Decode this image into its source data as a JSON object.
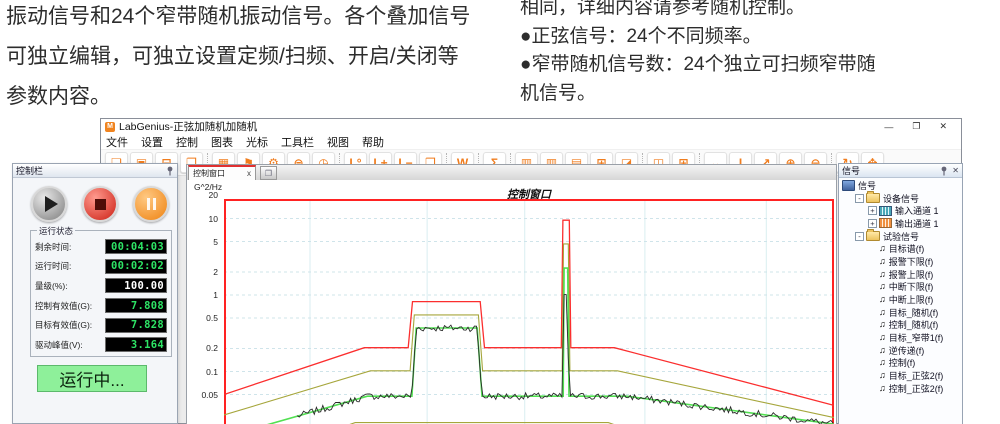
{
  "page": {
    "intro_left": [
      "振动信号和24个窄带随机振动信号。各个叠加信号",
      "可独立编辑，可独立设置定频/扫频、开启/关闭等",
      "参数内容。"
    ],
    "intro_right": [
      "相同，详细内容请参考随机控制。",
      "●正弦信号：24个不同频率。",
      "●窄带随机信号数：24个独立可扫频窄带随",
      "机信号。"
    ]
  },
  "window": {
    "title": "LabGenius-正弦加随机加随机",
    "logo_text": "M",
    "controls": [
      {
        "name": "minimize-button",
        "glyph": "—"
      },
      {
        "name": "restore-button",
        "glyph": "❐"
      },
      {
        "name": "close-button",
        "glyph": "✕"
      }
    ],
    "menu": [
      "文件",
      "设置",
      "控制",
      "图表",
      "光标",
      "工具栏",
      "视图",
      "帮助"
    ],
    "toolbar_groups": [
      {
        "icons": [
          {
            "name": "new-file-icon",
            "glyph": "❏"
          },
          {
            "name": "save-icon",
            "glyph": "▣"
          },
          {
            "name": "open-icon",
            "glyph": "⊟"
          },
          {
            "name": "export-icon",
            "glyph": "❐"
          }
        ]
      },
      {
        "icons": [
          {
            "name": "test-package-icon",
            "glyph": "▦"
          },
          {
            "name": "flag-icon",
            "glyph": "⚑"
          },
          {
            "name": "settings-gear-icon",
            "glyph": "⚙"
          },
          {
            "name": "channels-icon",
            "glyph": "⊜"
          },
          {
            "name": "schedule-clock-icon",
            "glyph": "◷"
          }
        ]
      },
      {
        "icons": [
          {
            "name": "level-reset-icon",
            "glyph": "L°"
          },
          {
            "name": "level-up-icon",
            "glyph": "L+"
          },
          {
            "name": "level-down-icon",
            "glyph": "L−"
          },
          {
            "name": "window-copy-icon",
            "glyph": "❒"
          }
        ]
      },
      {
        "icons": [
          {
            "name": "word-report-icon",
            "glyph": "W"
          }
        ]
      },
      {
        "icons": [
          {
            "name": "sum-icon",
            "glyph": "Σ"
          }
        ]
      },
      {
        "icons": [
          {
            "name": "bar-chart-1-icon",
            "glyph": "▥"
          },
          {
            "name": "bar-chart-2-icon",
            "glyph": "▥"
          },
          {
            "name": "bar-chart-3-icon",
            "glyph": "▤"
          },
          {
            "name": "table-edit-icon",
            "glyph": "⊞"
          },
          {
            "name": "curve-chart-icon",
            "glyph": "◪"
          }
        ]
      },
      {
        "icons": [
          {
            "name": "layout-link-icon",
            "glyph": "◫"
          },
          {
            "name": "layout-grid-icon",
            "glyph": "⊞"
          }
        ]
      },
      {
        "icons": [
          {
            "name": "zoom-horizontal-icon",
            "glyph": "↔"
          },
          {
            "name": "zoom-vertical-icon",
            "glyph": "I"
          },
          {
            "name": "zoom-diagonal-icon",
            "glyph": "↗"
          },
          {
            "name": "zoom-in-icon",
            "glyph": "⊕"
          },
          {
            "name": "zoom-out-icon",
            "glyph": "⊖"
          }
        ]
      },
      {
        "icons": [
          {
            "name": "refresh-icon",
            "glyph": "↻"
          },
          {
            "name": "fit-screen-icon",
            "glyph": "✥"
          }
        ]
      }
    ]
  },
  "control_panel": {
    "header": "控制栏",
    "status_group": "运行状态",
    "fields": [
      {
        "label": "剩余时间:",
        "value": "00:04:03",
        "color": "#2de465"
      },
      {
        "label": "运行时间:",
        "value": "00:02:02",
        "color": "#2de465"
      },
      {
        "label": "量级(%):",
        "value": "100.00",
        "color": "#ffffff"
      },
      {
        "label": "控制有效值(G):",
        "value": "7.808",
        "color": "#2de465"
      },
      {
        "label": "目标有效值(G):",
        "value": "7.828",
        "color": "#2de465"
      },
      {
        "label": "驱动峰值(V):",
        "value": "3.164",
        "color": "#2de465"
      }
    ],
    "run_status": "运行中..."
  },
  "chart_panel": {
    "tab": "控制窗口",
    "tab_close": "x",
    "extra_button_glyph": "❐"
  },
  "chart_data": {
    "type": "line",
    "title": "控制窗口",
    "ylabel": "G^2/Hz",
    "y_scale": "log",
    "y_ticks": [
      "20",
      "10",
      "5",
      "2",
      "1",
      "0.5",
      "0.2",
      "0.1",
      "0.05"
    ],
    "ylim_visible": [
      0.019,
      19
    ],
    "xlabel": "",
    "x_note": "frequency axis, tick labels cut off at bottom; x given as percent of plot span",
    "grid": true,
    "legend": "none",
    "v_gridlines_pct": [
      14.1,
      33.3,
      49.3,
      69.0,
      88.9
    ],
    "series": [
      {
        "name": "abort-upper-limit",
        "color": "#fb2e2e",
        "width": 1.3,
        "points": [
          [
            0,
            0.05
          ],
          [
            23,
            0.205
          ],
          [
            30.2,
            0.205
          ],
          [
            30.9,
            0.82
          ],
          [
            42,
            0.82
          ],
          [
            42.7,
            0.205
          ],
          [
            55.3,
            0.205
          ],
          [
            55.55,
            9.5
          ],
          [
            56.6,
            9.5
          ],
          [
            56.85,
            0.205
          ],
          [
            64,
            0.205
          ],
          [
            100,
            0.036
          ]
        ]
      },
      {
        "name": "alarm-upper-limit",
        "color": "#a6a63c",
        "width": 1.1,
        "points": [
          [
            0,
            0.027
          ],
          [
            24,
            0.102
          ],
          [
            30.5,
            0.102
          ],
          [
            31.2,
            0.55
          ],
          [
            41.7,
            0.55
          ],
          [
            42.4,
            0.102
          ],
          [
            55.45,
            0.102
          ],
          [
            55.65,
            4.65
          ],
          [
            56.45,
            4.65
          ],
          [
            56.7,
            0.102
          ],
          [
            64.5,
            0.102
          ],
          [
            100,
            0.025
          ]
        ]
      },
      {
        "name": "target-spectrum",
        "color": "#52e052",
        "width": 1.6,
        "points": [
          [
            6.5,
            0.0195
          ],
          [
            23.5,
            0.0475
          ],
          [
            30.8,
            0.0475
          ],
          [
            31.5,
            0.37
          ],
          [
            41.5,
            0.37
          ],
          [
            42.3,
            0.0475
          ],
          [
            55.6,
            0.0475
          ],
          [
            55.75,
            2.25
          ],
          [
            56.35,
            2.25
          ],
          [
            56.55,
            0.0475
          ],
          [
            66,
            0.0475
          ],
          [
            100,
            0.0205
          ]
        ]
      },
      {
        "name": "control-spectrum-noisy",
        "color": "#2a2a2a",
        "width": 0.9,
        "base_series": 2,
        "noise_log_decades": 0.09,
        "x_start": 12
      },
      {
        "name": "alarm-lower-limit-bottom",
        "color": "#a6a63c",
        "width": 1.1,
        "points": [
          [
            19,
            0.0183
          ],
          [
            21.5,
            0.0215
          ],
          [
            63,
            0.0215
          ],
          [
            65.5,
            0.0183
          ]
        ]
      }
    ]
  },
  "signal_panel": {
    "header": "信号",
    "tree": [
      {
        "label": "信号",
        "icon": "signals-root-icon",
        "level": 0,
        "expand": ""
      },
      {
        "label": "设备信号",
        "icon": "folder-icon",
        "level": 1,
        "expand": "-"
      },
      {
        "label": "输入通道 1",
        "icon": "input-channel-icon",
        "level": 2,
        "expand": "+"
      },
      {
        "label": "输出通道 1",
        "icon": "output-channel-icon",
        "level": 2,
        "expand": "+"
      },
      {
        "label": "试验信号",
        "icon": "folder-icon",
        "level": 1,
        "expand": "-"
      },
      {
        "label": "目标谱(f)",
        "icon": "waveform-icon",
        "level": 2,
        "expand": ""
      },
      {
        "label": "报警下限(f)",
        "icon": "waveform-icon",
        "level": 2,
        "expand": ""
      },
      {
        "label": "报警上限(f)",
        "icon": "waveform-icon",
        "level": 2,
        "expand": ""
      },
      {
        "label": "中断下限(f)",
        "icon": "waveform-icon",
        "level": 2,
        "expand": ""
      },
      {
        "label": "中断上限(f)",
        "icon": "waveform-icon",
        "level": 2,
        "expand": ""
      },
      {
        "label": "目标_随机(f)",
        "icon": "waveform-icon",
        "level": 2,
        "expand": ""
      },
      {
        "label": "控制_随机(f)",
        "icon": "waveform-icon",
        "level": 2,
        "expand": ""
      },
      {
        "label": "目标_窄带1(f)",
        "icon": "waveform-icon",
        "level": 2,
        "expand": ""
      },
      {
        "label": "逆传递(f)",
        "icon": "waveform-icon",
        "level": 2,
        "expand": ""
      },
      {
        "label": "控制(f)",
        "icon": "waveform-icon",
        "level": 2,
        "expand": ""
      },
      {
        "label": "目标_正弦2(f)",
        "icon": "waveform-icon",
        "level": 2,
        "expand": ""
      },
      {
        "label": "控制_正弦2(f)",
        "icon": "waveform-icon",
        "level": 2,
        "expand": ""
      }
    ]
  }
}
